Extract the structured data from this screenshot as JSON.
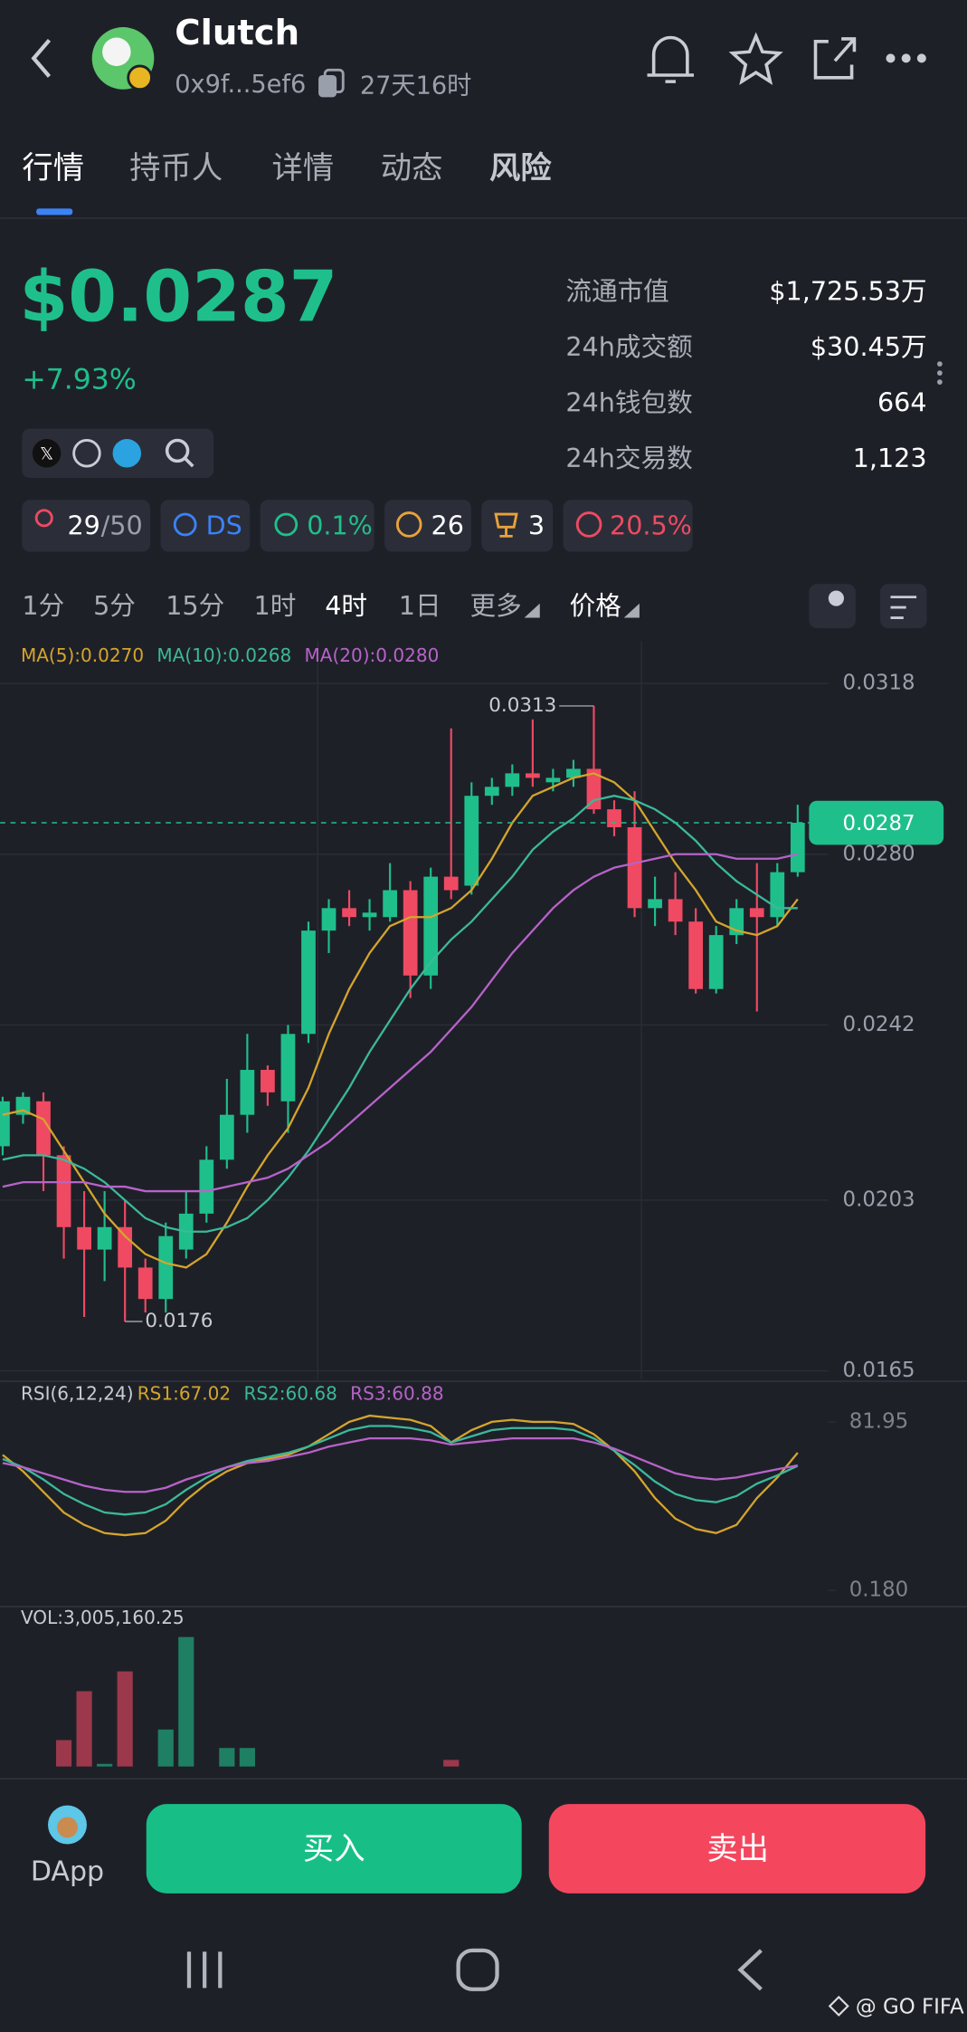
{
  "header": {
    "name": "Clutch",
    "address": "0x9f...5ef6",
    "age": "27天16时"
  },
  "tabs": [
    "行情",
    "持币人",
    "详情",
    "动态",
    "风险"
  ],
  "price": "$0.0287",
  "change": "+7.93%",
  "stats": [
    {
      "label": "流通市值",
      "value": "$1,725.53万"
    },
    {
      "label": "24h成交额",
      "value": "$30.45万"
    },
    {
      "label": "24h钱包数",
      "value": "664"
    },
    {
      "label": "24h交易数",
      "value": "1,123"
    }
  ],
  "badges": [
    {
      "text": "29",
      "suffix": "/50"
    },
    {
      "text": "DS"
    },
    {
      "text": "0.1%"
    },
    {
      "text": "26"
    },
    {
      "text": "3"
    },
    {
      "text": "20.5%"
    }
  ],
  "timeframes": [
    "1分",
    "5分",
    "15分",
    "1时",
    "4时",
    "1日",
    "更多",
    "价格"
  ],
  "chart_data": {
    "type": "candlestick",
    "ylim": [
      0.0164,
      0.0326
    ],
    "yticks": [
      0.0318,
      {
        "value": 0.028,
        "label": "0.0280"
      },
      0.0242,
      0.0203,
      0.0165
    ],
    "last_price": 0.0287,
    "high_label": 0.0313,
    "low_label": 0.0176,
    "up_color": "#1fbf8b",
    "down_color": "#ef4a62",
    "candles": [
      {
        "open": 0.0215,
        "close": 0.0225,
        "high": 0.0226,
        "low": 0.0213
      },
      {
        "open": 0.0222,
        "close": 0.0226,
        "high": 0.0227,
        "low": 0.022
      },
      {
        "open": 0.0225,
        "close": 0.0213,
        "high": 0.0227,
        "low": 0.0205
      },
      {
        "open": 0.0213,
        "close": 0.0197,
        "high": 0.0215,
        "low": 0.019
      },
      {
        "open": 0.0197,
        "close": 0.0192,
        "high": 0.0205,
        "low": 0.0177
      },
      {
        "open": 0.0192,
        "close": 0.0197,
        "high": 0.0205,
        "low": 0.0185
      },
      {
        "open": 0.0197,
        "close": 0.0188,
        "high": 0.0203,
        "low": 0.0176
      },
      {
        "open": 0.0188,
        "close": 0.0181,
        "high": 0.019,
        "low": 0.0178
      },
      {
        "open": 0.0181,
        "close": 0.0195,
        "high": 0.0198,
        "low": 0.0178
      },
      {
        "open": 0.0192,
        "close": 0.02,
        "high": 0.0205,
        "low": 0.019
      },
      {
        "open": 0.02,
        "close": 0.0212,
        "high": 0.0215,
        "low": 0.0198
      },
      {
        "open": 0.0212,
        "close": 0.0222,
        "high": 0.023,
        "low": 0.021
      },
      {
        "open": 0.0222,
        "close": 0.0232,
        "high": 0.024,
        "low": 0.0218
      },
      {
        "open": 0.0232,
        "close": 0.0227,
        "high": 0.0233,
        "low": 0.0224
      },
      {
        "open": 0.0225,
        "close": 0.024,
        "high": 0.0242,
        "low": 0.0218
      },
      {
        "open": 0.024,
        "close": 0.0263,
        "high": 0.0265,
        "low": 0.0238
      },
      {
        "open": 0.0263,
        "close": 0.0268,
        "high": 0.027,
        "low": 0.0258
      },
      {
        "open": 0.0268,
        "close": 0.0266,
        "high": 0.0272,
        "low": 0.0264
      },
      {
        "open": 0.0266,
        "close": 0.0267,
        "high": 0.027,
        "low": 0.0263
      },
      {
        "open": 0.0266,
        "close": 0.0272,
        "high": 0.0278,
        "low": 0.0265
      },
      {
        "open": 0.0272,
        "close": 0.0253,
        "high": 0.0274,
        "low": 0.0248
      },
      {
        "open": 0.0253,
        "close": 0.0275,
        "high": 0.0277,
        "low": 0.025
      },
      {
        "open": 0.0275,
        "close": 0.0272,
        "high": 0.0308,
        "low": 0.027
      },
      {
        "open": 0.0273,
        "close": 0.0293,
        "high": 0.0296,
        "low": 0.0271
      },
      {
        "open": 0.0293,
        "close": 0.0295,
        "high": 0.0297,
        "low": 0.0291
      },
      {
        "open": 0.0295,
        "close": 0.0298,
        "high": 0.03,
        "low": 0.0293
      },
      {
        "open": 0.0298,
        "close": 0.0297,
        "high": 0.031,
        "low": 0.0295
      },
      {
        "open": 0.0296,
        "close": 0.0297,
        "high": 0.0299,
        "low": 0.0294
      },
      {
        "open": 0.0297,
        "close": 0.0299,
        "high": 0.0301,
        "low": 0.0295
      },
      {
        "open": 0.0299,
        "close": 0.029,
        "high": 0.0313,
        "low": 0.0289
      },
      {
        "open": 0.029,
        "close": 0.0286,
        "high": 0.0292,
        "low": 0.0284
      },
      {
        "open": 0.0286,
        "close": 0.0268,
        "high": 0.0294,
        "low": 0.0266
      },
      {
        "open": 0.0268,
        "close": 0.027,
        "high": 0.0275,
        "low": 0.0264
      },
      {
        "open": 0.027,
        "close": 0.0265,
        "high": 0.0276,
        "low": 0.0262
      },
      {
        "open": 0.0265,
        "close": 0.025,
        "high": 0.0268,
        "low": 0.0249
      },
      {
        "open": 0.025,
        "close": 0.0262,
        "high": 0.0264,
        "low": 0.0249
      },
      {
        "open": 0.0262,
        "close": 0.0268,
        "high": 0.027,
        "low": 0.026
      },
      {
        "open": 0.0268,
        "close": 0.0266,
        "high": 0.0278,
        "low": 0.0245
      },
      {
        "open": 0.0266,
        "close": 0.0276,
        "high": 0.0278,
        "low": 0.0264
      },
      {
        "open": 0.0276,
        "close": 0.0287,
        "high": 0.0291,
        "low": 0.0275
      }
    ],
    "series": [
      {
        "label": "MA(5):0.0270",
        "color": "#d4a52c",
        "values": [
          0.0222,
          0.0223,
          0.0221,
          0.0214,
          0.0207,
          0.02,
          0.0195,
          0.0191,
          0.0189,
          0.0188,
          0.0191,
          0.0198,
          0.0206,
          0.0213,
          0.0219,
          0.0228,
          0.024,
          0.025,
          0.0258,
          0.0264,
          0.0266,
          0.0266,
          0.0268,
          0.0272,
          0.0279,
          0.0287,
          0.0293,
          0.0295,
          0.0297,
          0.0298,
          0.0296,
          0.0292,
          0.0285,
          0.0278,
          0.0272,
          0.0265,
          0.0263,
          0.0262,
          0.0264,
          0.027
        ]
      },
      {
        "label": "MA(10):0.0268",
        "color": "#3bb99a",
        "values": [
          0.0212,
          0.0213,
          0.0213,
          0.0212,
          0.021,
          0.0207,
          0.0203,
          0.0199,
          0.0197,
          0.0196,
          0.0196,
          0.0197,
          0.0199,
          0.0203,
          0.0208,
          0.0214,
          0.0221,
          0.0228,
          0.0236,
          0.0243,
          0.025,
          0.0256,
          0.0261,
          0.0265,
          0.027,
          0.0275,
          0.0281,
          0.0285,
          0.0288,
          0.0292,
          0.0293,
          0.0292,
          0.029,
          0.0287,
          0.0283,
          0.0278,
          0.0274,
          0.0271,
          0.0268,
          0.0268
        ]
      },
      {
        "label": "MA(20):0.0280",
        "color": "#b763c9",
        "values": [
          0.0206,
          0.0207,
          0.0207,
          0.0207,
          0.0207,
          0.0206,
          0.0206,
          0.0205,
          0.0205,
          0.0205,
          0.0205,
          0.0206,
          0.0207,
          0.0208,
          0.021,
          0.0213,
          0.0216,
          0.022,
          0.0224,
          0.0228,
          0.0232,
          0.0236,
          0.0241,
          0.0246,
          0.0252,
          0.0258,
          0.0263,
          0.0268,
          0.0272,
          0.0275,
          0.0277,
          0.0278,
          0.0279,
          0.028,
          0.028,
          0.028,
          0.0279,
          0.0279,
          0.0279,
          0.028
        ]
      }
    ]
  },
  "rsi": {
    "title": "RSI(6,12,24)",
    "ylim": [
      -6.1,
      100.8
    ],
    "yticks": [
      81.95,
      {
        "value": 0.18,
        "label": "0.180"
      }
    ],
    "series": [
      {
        "label": "RS1:67.02",
        "color": "#d4a52c",
        "values": [
          66,
          58,
          48,
          38,
          32,
          28,
          27,
          28,
          34,
          44,
          52,
          58,
          62,
          64,
          66,
          70,
          76,
          82,
          85,
          84,
          83,
          80,
          72,
          78,
          82,
          83,
          82,
          82,
          81,
          76,
          68,
          58,
          45,
          35,
          30,
          28,
          32,
          45,
          55,
          67.02
        ]
      },
      {
        "label": "RS2:60.68",
        "color": "#3bb99a",
        "values": [
          64,
          60,
          54,
          47,
          42,
          38,
          37,
          38,
          42,
          49,
          55,
          60,
          63,
          65,
          67,
          70,
          74,
          78,
          80,
          80,
          79,
          77,
          72,
          75,
          78,
          79,
          79,
          79,
          78,
          74,
          68,
          61,
          53,
          47,
          44,
          43,
          46,
          52,
          56,
          60.68
        ]
      },
      {
        "label": "RS3:60.88",
        "color": "#b763c9",
        "values": [
          62,
          60,
          57,
          54,
          51,
          49,
          48,
          48,
          50,
          54,
          57,
          60,
          62,
          63,
          65,
          67,
          70,
          72,
          74,
          74,
          74,
          73,
          71,
          72,
          73,
          74,
          74,
          74,
          74,
          72,
          69,
          65,
          61,
          57,
          55,
          54,
          55,
          57,
          59,
          60.88
        ]
      }
    ]
  },
  "volume": {
    "label": "VOL:3,005,160.25",
    "ylim": [
      0,
      100
    ],
    "values": [
      null,
      null,
      null,
      20,
      57,
      2,
      72,
      null,
      28,
      98,
      null,
      14,
      14,
      null,
      null,
      null,
      null,
      null,
      null,
      null,
      null,
      null,
      5,
      null,
      null,
      null,
      null,
      null,
      null,
      null,
      null,
      null,
      null,
      null,
      null,
      null,
      null,
      null,
      null,
      null
    ]
  },
  "actions": {
    "dapp": "DApp",
    "buy": "买入",
    "sell": "卖出"
  },
  "watermark": "@ GO FIFA"
}
